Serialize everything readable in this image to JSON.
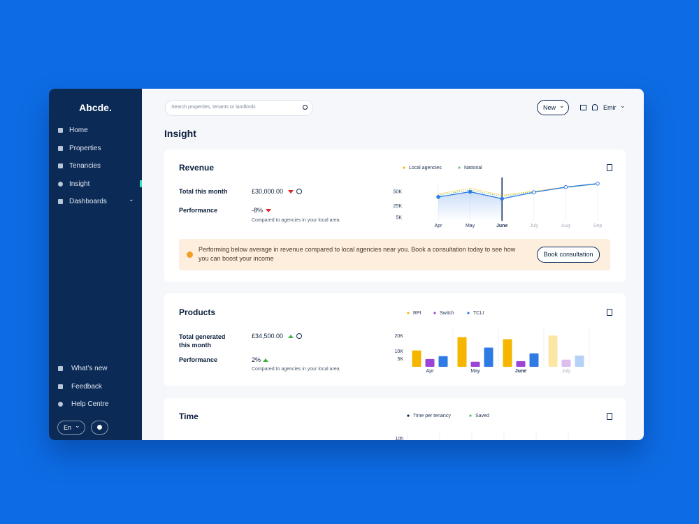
{
  "sidebar": {
    "logo": "Abcde.",
    "nav": [
      "Home",
      "Properties",
      "Tenancies",
      "Insight",
      "Dashboards"
    ],
    "bottom": [
      "What’s new",
      "Feedback",
      "Help Centre"
    ],
    "language": "En"
  },
  "header": {
    "search_placeholder": "Search properties, tenants or landlords",
    "new_button": "New",
    "user": "Emir"
  },
  "page_title": "Insight",
  "revenue": {
    "title": "Revenue",
    "total_label": "Total this month",
    "total_value": "£30,000.00",
    "performance_label": "Performance",
    "performance_value": "-8%",
    "note": "Compared to agencies in your local area",
    "alert": "Performing below average in revenue compared to local agencies near you. Book a consultation today to see how you can boost your income",
    "alert_button": "Book consultation",
    "chart": {
      "type": "line",
      "categories": [
        "Apr",
        "May",
        "June",
        "July",
        "Aug",
        "Sep"
      ],
      "highlight": "June",
      "ylim": [
        0,
        65
      ],
      "yticks": [
        {
          "value": 50,
          "label": "50K"
        },
        {
          "value": 25,
          "label": "25K"
        },
        {
          "value": 5,
          "label": "5K"
        }
      ],
      "series": [
        {
          "name": "Local agencies",
          "color": "#f2b705",
          "values": [
            46,
            56,
            44,
            51,
            58,
            64
          ]
        },
        {
          "name": "National",
          "color": "#7cc47a",
          "values": [
            44,
            53,
            42,
            50,
            57,
            63
          ]
        },
        {
          "color": "#2f7be5",
          "values": [
            41,
            50,
            38,
            49,
            58,
            64
          ]
        }
      ]
    }
  },
  "products": {
    "title": "Products",
    "total_label": "Total generated this month",
    "total_value": "£34,500.00",
    "performance_label": "Performance",
    "performance_value": "2%",
    "note": "Compared to agencies in your local area",
    "chart": {
      "type": "bar",
      "categories": [
        "Apr",
        "May",
        "June",
        "July"
      ],
      "highlight": "June",
      "ylim": [
        0,
        22
      ],
      "yticks": [
        {
          "value": 20,
          "label": "20K"
        },
        {
          "value": 10,
          "label": "10K"
        },
        {
          "value": 5,
          "label": "5K"
        }
      ],
      "series": [
        {
          "name": "RPI",
          "color": "#f6b600",
          "values": [
            10.7,
            19.5,
            18.1,
            20.5
          ]
        },
        {
          "name": "Switch",
          "color": "#9b45d6",
          "values": [
            5.1,
            3.3,
            3.7,
            4.7
          ]
        },
        {
          "name": "TCLI",
          "color": "#2f7be5",
          "values": [
            7,
            12.6,
            8.8,
            7.4
          ]
        }
      ]
    }
  },
  "time": {
    "title": "Time",
    "legend": [
      {
        "name": "Time per tenancy",
        "color": "#0b2a55"
      },
      {
        "name": "Saved",
        "color": "#5cc55a"
      }
    ],
    "ytick": "10h"
  }
}
